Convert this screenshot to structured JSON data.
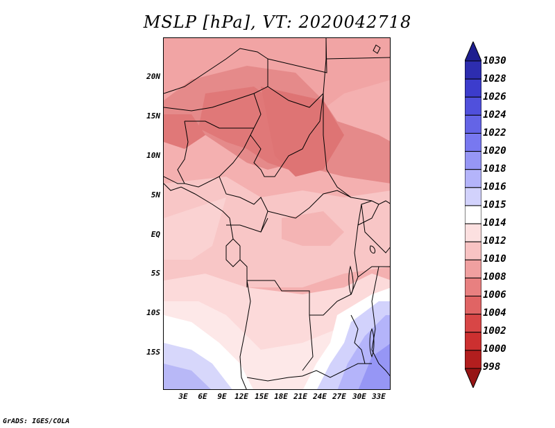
{
  "title": "MSLP [hPa], VT: 2020042718",
  "footer": "GrADS: IGES/COLA",
  "map": {
    "region": "Central Africa",
    "lat_labels": [
      "20N",
      "15N",
      "10N",
      "5N",
      "EQ",
      "5S",
      "10S",
      "15S"
    ],
    "lon_labels": [
      "3E",
      "6E",
      "9E",
      "12E",
      "15E",
      "18E",
      "21E",
      "24E",
      "27E",
      "30E",
      "33E"
    ]
  },
  "colorbar": {
    "levels": [
      "1030",
      "1028",
      "1026",
      "1024",
      "1022",
      "1020",
      "1018",
      "1016",
      "1015",
      "1014",
      "1012",
      "1010",
      "1008",
      "1006",
      "1004",
      "1002",
      "1000",
      "998"
    ],
    "colors": [
      "#1e1e8f",
      "#2d2daf",
      "#3c3ccc",
      "#5050dc",
      "#6464e6",
      "#7878f0",
      "#9696f5",
      "#b4b4fa",
      "#d2d2fc",
      "#ffffff",
      "#fce0e0",
      "#f8c3c3",
      "#f0a0a0",
      "#e88080",
      "#e06464",
      "#d84646",
      "#cc3030",
      "#b21e1e",
      "#961414"
    ]
  }
}
